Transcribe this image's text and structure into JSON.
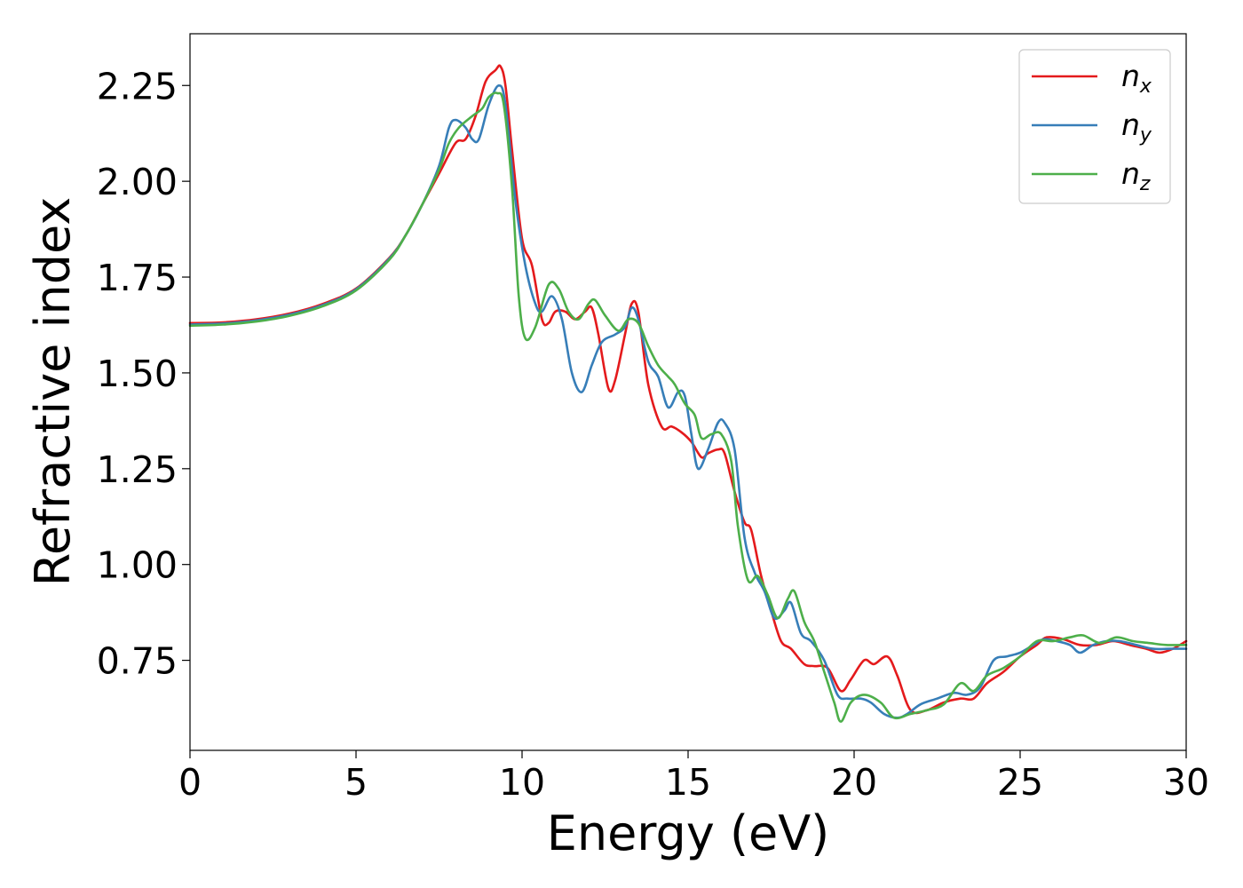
{
  "chart_data": {
    "type": "line",
    "xlabel": "Energy (eV)",
    "ylabel": "Refractive index",
    "xlim": [
      0,
      30
    ],
    "ylim": [
      0.515,
      2.385
    ],
    "x_ticks": [
      "0",
      "5",
      "10",
      "15",
      "20",
      "25",
      "30"
    ],
    "y_ticks": [
      "0.75",
      "1.00",
      "1.25",
      "1.50",
      "1.75",
      "2.00",
      "2.25"
    ],
    "x_tick_values": [
      0,
      5,
      10,
      15,
      20,
      25,
      30
    ],
    "y_tick_values": [
      0.75,
      1.0,
      1.25,
      1.5,
      1.75,
      2.0,
      2.25
    ],
    "grid": false,
    "legend_position": "top-right",
    "series": [
      {
        "name": "n",
        "subscript": "x",
        "color": "#e41a1c",
        "points": [
          [
            0,
            1.63
          ],
          [
            1,
            1.632
          ],
          [
            2,
            1.64
          ],
          [
            3,
            1.655
          ],
          [
            4,
            1.68
          ],
          [
            5,
            1.72
          ],
          [
            6,
            1.8
          ],
          [
            6.5,
            1.86
          ],
          [
            7,
            1.94
          ],
          [
            7.5,
            2.02
          ],
          [
            8,
            2.1
          ],
          [
            8.3,
            2.11
          ],
          [
            8.6,
            2.17
          ],
          [
            8.9,
            2.26
          ],
          [
            9.2,
            2.29
          ],
          [
            9.35,
            2.3
          ],
          [
            9.5,
            2.25
          ],
          [
            9.7,
            2.08
          ],
          [
            10.0,
            1.85
          ],
          [
            10.3,
            1.78
          ],
          [
            10.6,
            1.64
          ],
          [
            10.8,
            1.63
          ],
          [
            11.0,
            1.66
          ],
          [
            11.3,
            1.66
          ],
          [
            11.6,
            1.64
          ],
          [
            11.9,
            1.66
          ],
          [
            12.1,
            1.67
          ],
          [
            12.3,
            1.6
          ],
          [
            12.6,
            1.46
          ],
          [
            12.8,
            1.48
          ],
          [
            13.1,
            1.6
          ],
          [
            13.3,
            1.68
          ],
          [
            13.5,
            1.66
          ],
          [
            13.8,
            1.47
          ],
          [
            14.2,
            1.36
          ],
          [
            14.5,
            1.36
          ],
          [
            14.8,
            1.345
          ],
          [
            15.1,
            1.32
          ],
          [
            15.4,
            1.28
          ],
          [
            15.6,
            1.29
          ],
          [
            15.9,
            1.3
          ],
          [
            16.1,
            1.29
          ],
          [
            16.4,
            1.19
          ],
          [
            16.7,
            1.11
          ],
          [
            16.9,
            1.09
          ],
          [
            17.2,
            0.97
          ],
          [
            17.5,
            0.88
          ],
          [
            17.8,
            0.8
          ],
          [
            18.1,
            0.78
          ],
          [
            18.5,
            0.74
          ],
          [
            18.8,
            0.735
          ],
          [
            19.2,
            0.73
          ],
          [
            19.6,
            0.67
          ],
          [
            19.9,
            0.7
          ],
          [
            20.3,
            0.75
          ],
          [
            20.6,
            0.74
          ],
          [
            21.0,
            0.76
          ],
          [
            21.3,
            0.71
          ],
          [
            21.7,
            0.62
          ],
          [
            22.2,
            0.62
          ],
          [
            22.7,
            0.64
          ],
          [
            23.2,
            0.65
          ],
          [
            23.6,
            0.65
          ],
          [
            24.0,
            0.69
          ],
          [
            24.5,
            0.72
          ],
          [
            25.0,
            0.76
          ],
          [
            25.5,
            0.79
          ],
          [
            25.8,
            0.81
          ],
          [
            26.3,
            0.805
          ],
          [
            26.8,
            0.79
          ],
          [
            27.3,
            0.79
          ],
          [
            27.8,
            0.8
          ],
          [
            28.3,
            0.79
          ],
          [
            28.8,
            0.78
          ],
          [
            29.2,
            0.77
          ],
          [
            29.6,
            0.78
          ],
          [
            30,
            0.8
          ]
        ]
      },
      {
        "name": "n",
        "subscript": "y",
        "color": "#377eb8",
        "points": [
          [
            0,
            1.626
          ],
          [
            1,
            1.629
          ],
          [
            2,
            1.637
          ],
          [
            3,
            1.652
          ],
          [
            4,
            1.677
          ],
          [
            5,
            1.718
          ],
          [
            6,
            1.798
          ],
          [
            6.5,
            1.86
          ],
          [
            7,
            1.94
          ],
          [
            7.5,
            2.04
          ],
          [
            7.8,
            2.14
          ],
          [
            8.0,
            2.16
          ],
          [
            8.3,
            2.14
          ],
          [
            8.5,
            2.11
          ],
          [
            8.7,
            2.11
          ],
          [
            9.0,
            2.2
          ],
          [
            9.3,
            2.25
          ],
          [
            9.5,
            2.2
          ],
          [
            9.8,
            1.95
          ],
          [
            10.1,
            1.78
          ],
          [
            10.4,
            1.68
          ],
          [
            10.6,
            1.66
          ],
          [
            10.9,
            1.7
          ],
          [
            11.2,
            1.64
          ],
          [
            11.5,
            1.5
          ],
          [
            11.8,
            1.45
          ],
          [
            12.1,
            1.52
          ],
          [
            12.4,
            1.58
          ],
          [
            12.8,
            1.6
          ],
          [
            13.1,
            1.62
          ],
          [
            13.3,
            1.67
          ],
          [
            13.5,
            1.64
          ],
          [
            13.8,
            1.53
          ],
          [
            14.1,
            1.49
          ],
          [
            14.4,
            1.41
          ],
          [
            14.7,
            1.45
          ],
          [
            14.9,
            1.44
          ],
          [
            15.1,
            1.34
          ],
          [
            15.3,
            1.25
          ],
          [
            15.6,
            1.3
          ],
          [
            15.9,
            1.37
          ],
          [
            16.1,
            1.37
          ],
          [
            16.4,
            1.3
          ],
          [
            16.7,
            1.07
          ],
          [
            17.0,
            0.98
          ],
          [
            17.3,
            0.93
          ],
          [
            17.6,
            0.86
          ],
          [
            17.9,
            0.88
          ],
          [
            18.1,
            0.9
          ],
          [
            18.4,
            0.82
          ],
          [
            18.7,
            0.8
          ],
          [
            19.1,
            0.75
          ],
          [
            19.5,
            0.66
          ],
          [
            19.8,
            0.65
          ],
          [
            20.2,
            0.65
          ],
          [
            20.5,
            0.64
          ],
          [
            20.9,
            0.61
          ],
          [
            21.3,
            0.6
          ],
          [
            21.6,
            0.61
          ],
          [
            22.0,
            0.635
          ],
          [
            22.5,
            0.65
          ],
          [
            23.0,
            0.665
          ],
          [
            23.4,
            0.66
          ],
          [
            23.8,
            0.68
          ],
          [
            24.2,
            0.75
          ],
          [
            24.6,
            0.76
          ],
          [
            25.0,
            0.77
          ],
          [
            25.4,
            0.79
          ],
          [
            25.7,
            0.805
          ],
          [
            26.1,
            0.8
          ],
          [
            26.5,
            0.79
          ],
          [
            26.8,
            0.77
          ],
          [
            27.2,
            0.79
          ],
          [
            27.6,
            0.8
          ],
          [
            28.0,
            0.8
          ],
          [
            28.5,
            0.79
          ],
          [
            29.0,
            0.78
          ],
          [
            29.5,
            0.78
          ],
          [
            30,
            0.78
          ]
        ]
      },
      {
        "name": "n",
        "subscript": "z",
        "color": "#4daf4a",
        "points": [
          [
            0,
            1.623
          ],
          [
            1,
            1.626
          ],
          [
            2,
            1.634
          ],
          [
            3,
            1.649
          ],
          [
            4,
            1.674
          ],
          [
            5,
            1.715
          ],
          [
            6,
            1.795
          ],
          [
            6.5,
            1.86
          ],
          [
            7,
            1.94
          ],
          [
            7.5,
            2.03
          ],
          [
            7.8,
            2.1
          ],
          [
            8.1,
            2.14
          ],
          [
            8.5,
            2.17
          ],
          [
            8.8,
            2.19
          ],
          [
            9.0,
            2.22
          ],
          [
            9.25,
            2.23
          ],
          [
            9.45,
            2.2
          ],
          [
            9.7,
            1.98
          ],
          [
            9.9,
            1.7
          ],
          [
            10.1,
            1.59
          ],
          [
            10.4,
            1.62
          ],
          [
            10.8,
            1.73
          ],
          [
            11.1,
            1.72
          ],
          [
            11.4,
            1.66
          ],
          [
            11.7,
            1.64
          ],
          [
            12.0,
            1.68
          ],
          [
            12.2,
            1.69
          ],
          [
            12.5,
            1.65
          ],
          [
            12.9,
            1.61
          ],
          [
            13.2,
            1.64
          ],
          [
            13.5,
            1.63
          ],
          [
            13.8,
            1.57
          ],
          [
            14.1,
            1.52
          ],
          [
            14.4,
            1.49
          ],
          [
            14.6,
            1.47
          ],
          [
            14.9,
            1.42
          ],
          [
            15.2,
            1.39
          ],
          [
            15.4,
            1.33
          ],
          [
            15.7,
            1.34
          ],
          [
            16.0,
            1.34
          ],
          [
            16.3,
            1.27
          ],
          [
            16.5,
            1.1
          ],
          [
            16.8,
            0.96
          ],
          [
            17.1,
            0.97
          ],
          [
            17.4,
            0.92
          ],
          [
            17.7,
            0.86
          ],
          [
            18.0,
            0.91
          ],
          [
            18.2,
            0.93
          ],
          [
            18.5,
            0.85
          ],
          [
            18.8,
            0.8
          ],
          [
            19.1,
            0.72
          ],
          [
            19.4,
            0.64
          ],
          [
            19.6,
            0.59
          ],
          [
            19.9,
            0.64
          ],
          [
            20.3,
            0.66
          ],
          [
            20.8,
            0.64
          ],
          [
            21.2,
            0.6
          ],
          [
            21.7,
            0.61
          ],
          [
            22.2,
            0.62
          ],
          [
            22.7,
            0.635
          ],
          [
            23.2,
            0.69
          ],
          [
            23.6,
            0.67
          ],
          [
            24.0,
            0.71
          ],
          [
            24.5,
            0.73
          ],
          [
            25.0,
            0.76
          ],
          [
            25.5,
            0.8
          ],
          [
            26.0,
            0.8
          ],
          [
            26.5,
            0.81
          ],
          [
            26.9,
            0.815
          ],
          [
            27.4,
            0.795
          ],
          [
            27.9,
            0.81
          ],
          [
            28.4,
            0.8
          ],
          [
            28.9,
            0.795
          ],
          [
            29.4,
            0.79
          ],
          [
            30,
            0.79
          ]
        ]
      }
    ]
  }
}
